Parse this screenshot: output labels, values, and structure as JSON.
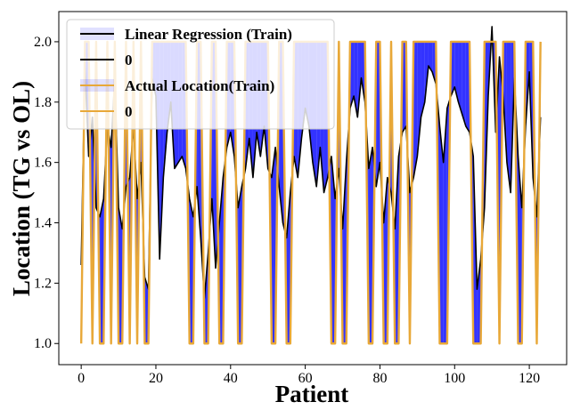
{
  "chart_data": {
    "type": "line",
    "xlabel": "Patient",
    "ylabel": "Location (TG vs OL)",
    "xlim": [
      -6,
      130
    ],
    "ylim": [
      0.93,
      2.1
    ],
    "xticks": [
      0,
      20,
      40,
      60,
      80,
      100,
      120
    ],
    "yticks": [
      1.0,
      1.2,
      1.4,
      1.6,
      1.8,
      2.0
    ],
    "ytick_labels": [
      "1.0",
      "1.2",
      "1.4",
      "1.6",
      "1.8",
      "2.0"
    ],
    "grid": false,
    "legend": {
      "placement": "top-left",
      "entries": [
        {
          "label": "Linear Regression (Train)",
          "color": "#000000",
          "style": "line-with-fill"
        },
        {
          "label": "0",
          "color": "#000000",
          "style": "line"
        },
        {
          "label": "Actual Location(Train)",
          "color": "#e8a838",
          "style": "line-with-fill"
        },
        {
          "label": "0",
          "color": "#e8a838",
          "style": "line"
        }
      ]
    },
    "colors": {
      "prediction": "#000000",
      "actual": "#e8a838",
      "fill": "#0000ff"
    },
    "series": [
      {
        "name": "Linear Regression (Train)",
        "color": "#000000",
        "x": [
          0,
          1,
          2,
          3,
          4,
          5,
          6,
          7,
          8,
          9,
          10,
          11,
          12,
          13,
          14,
          15,
          16,
          17,
          18,
          19,
          20,
          21,
          22,
          23,
          24,
          25,
          26,
          27,
          28,
          29,
          30,
          31,
          32,
          33,
          34,
          35,
          36,
          37,
          38,
          39,
          40,
          41,
          42,
          43,
          44,
          45,
          46,
          47,
          48,
          49,
          50,
          51,
          52,
          53,
          54,
          55,
          56,
          57,
          58,
          59,
          60,
          61,
          62,
          63,
          64,
          65,
          66,
          67,
          68,
          69,
          70,
          71,
          72,
          73,
          74,
          75,
          76,
          77,
          78,
          79,
          80,
          81,
          82,
          83,
          84,
          85,
          86,
          87,
          88,
          89,
          90,
          91,
          92,
          93,
          94,
          95,
          96,
          97,
          98,
          99,
          100,
          101,
          102,
          103,
          104,
          105,
          106,
          107,
          108,
          109,
          110,
          111,
          112,
          113,
          114,
          115,
          116,
          117,
          118,
          119,
          120,
          121,
          122,
          123
        ],
        "values": [
          1.26,
          1.92,
          1.62,
          1.75,
          1.45,
          1.42,
          1.48,
          1.72,
          1.65,
          1.88,
          1.45,
          1.38,
          1.52,
          1.55,
          1.72,
          1.48,
          1.6,
          1.22,
          1.18,
          1.88,
          1.82,
          1.28,
          1.55,
          1.7,
          1.8,
          1.58,
          1.6,
          1.62,
          1.58,
          1.48,
          1.42,
          1.52,
          1.35,
          1.15,
          1.3,
          1.48,
          1.25,
          1.4,
          1.55,
          1.65,
          1.7,
          1.62,
          1.45,
          1.52,
          1.58,
          1.68,
          1.55,
          1.7,
          1.62,
          1.72,
          1.58,
          1.55,
          1.65,
          1.52,
          1.4,
          1.35,
          1.5,
          1.62,
          1.55,
          1.68,
          1.78,
          1.72,
          1.6,
          1.52,
          1.65,
          1.5,
          1.55,
          1.62,
          1.48,
          1.58,
          1.38,
          1.6,
          1.78,
          1.82,
          1.75,
          1.88,
          1.8,
          1.58,
          1.65,
          1.52,
          1.6,
          1.4,
          1.55,
          1.5,
          1.38,
          1.62,
          1.7,
          1.72,
          1.5,
          1.55,
          1.62,
          1.75,
          1.8,
          1.92,
          1.9,
          1.86,
          1.72,
          1.6,
          1.78,
          1.82,
          1.85,
          1.8,
          1.76,
          1.72,
          1.7,
          1.62,
          1.18,
          1.28,
          1.45,
          1.82,
          2.05,
          1.7,
          1.95,
          1.82,
          1.6,
          1.5,
          1.88,
          1.62,
          1.45,
          1.72,
          1.9,
          1.55,
          1.42,
          1.75
        ]
      },
      {
        "name": "Actual Location(Train)",
        "color": "#e8a838",
        "x": [
          0,
          1,
          2,
          3,
          4,
          5,
          6,
          7,
          8,
          9,
          10,
          11,
          12,
          13,
          14,
          15,
          16,
          17,
          18,
          19,
          20,
          21,
          22,
          23,
          24,
          25,
          26,
          27,
          28,
          29,
          30,
          31,
          32,
          33,
          34,
          35,
          36,
          37,
          38,
          39,
          40,
          41,
          42,
          43,
          44,
          45,
          46,
          47,
          48,
          49,
          50,
          51,
          52,
          53,
          54,
          55,
          56,
          57,
          58,
          59,
          60,
          61,
          62,
          63,
          64,
          65,
          66,
          67,
          68,
          69,
          70,
          71,
          72,
          73,
          74,
          75,
          76,
          77,
          78,
          79,
          80,
          81,
          82,
          83,
          84,
          85,
          86,
          87,
          88,
          89,
          90,
          91,
          92,
          93,
          94,
          95,
          96,
          97,
          98,
          99,
          100,
          101,
          102,
          103,
          104,
          105,
          106,
          107,
          108,
          109,
          110,
          111,
          112,
          113,
          114,
          115,
          116,
          117,
          118,
          119,
          120,
          121,
          122,
          123
        ],
        "values": [
          1,
          2,
          2,
          1,
          2,
          1,
          1,
          2,
          1,
          2,
          1,
          1,
          2,
          1,
          2,
          1,
          2,
          1,
          1,
          2,
          2,
          2,
          2,
          2,
          2,
          2,
          2,
          2,
          2,
          1,
          1,
          2,
          2,
          1,
          1,
          2,
          2,
          1,
          1,
          2,
          2,
          2,
          1,
          1,
          2,
          2,
          2,
          2,
          2,
          2,
          2,
          1,
          1,
          2,
          2,
          1,
          1,
          2,
          2,
          2,
          2,
          2,
          2,
          2,
          2,
          2,
          2,
          1,
          1,
          2,
          1,
          1,
          2,
          2,
          2,
          2,
          2,
          1,
          1,
          2,
          2,
          1,
          1,
          2,
          1,
          1,
          2,
          2,
          1,
          2,
          2,
          2,
          2,
          2,
          2,
          2,
          1,
          1,
          1,
          2,
          2,
          2,
          2,
          2,
          2,
          1,
          1,
          1,
          2,
          2,
          2,
          2,
          1,
          2,
          2,
          2,
          2,
          1,
          1,
          2,
          2,
          2,
          1,
          2
        ]
      }
    ]
  }
}
